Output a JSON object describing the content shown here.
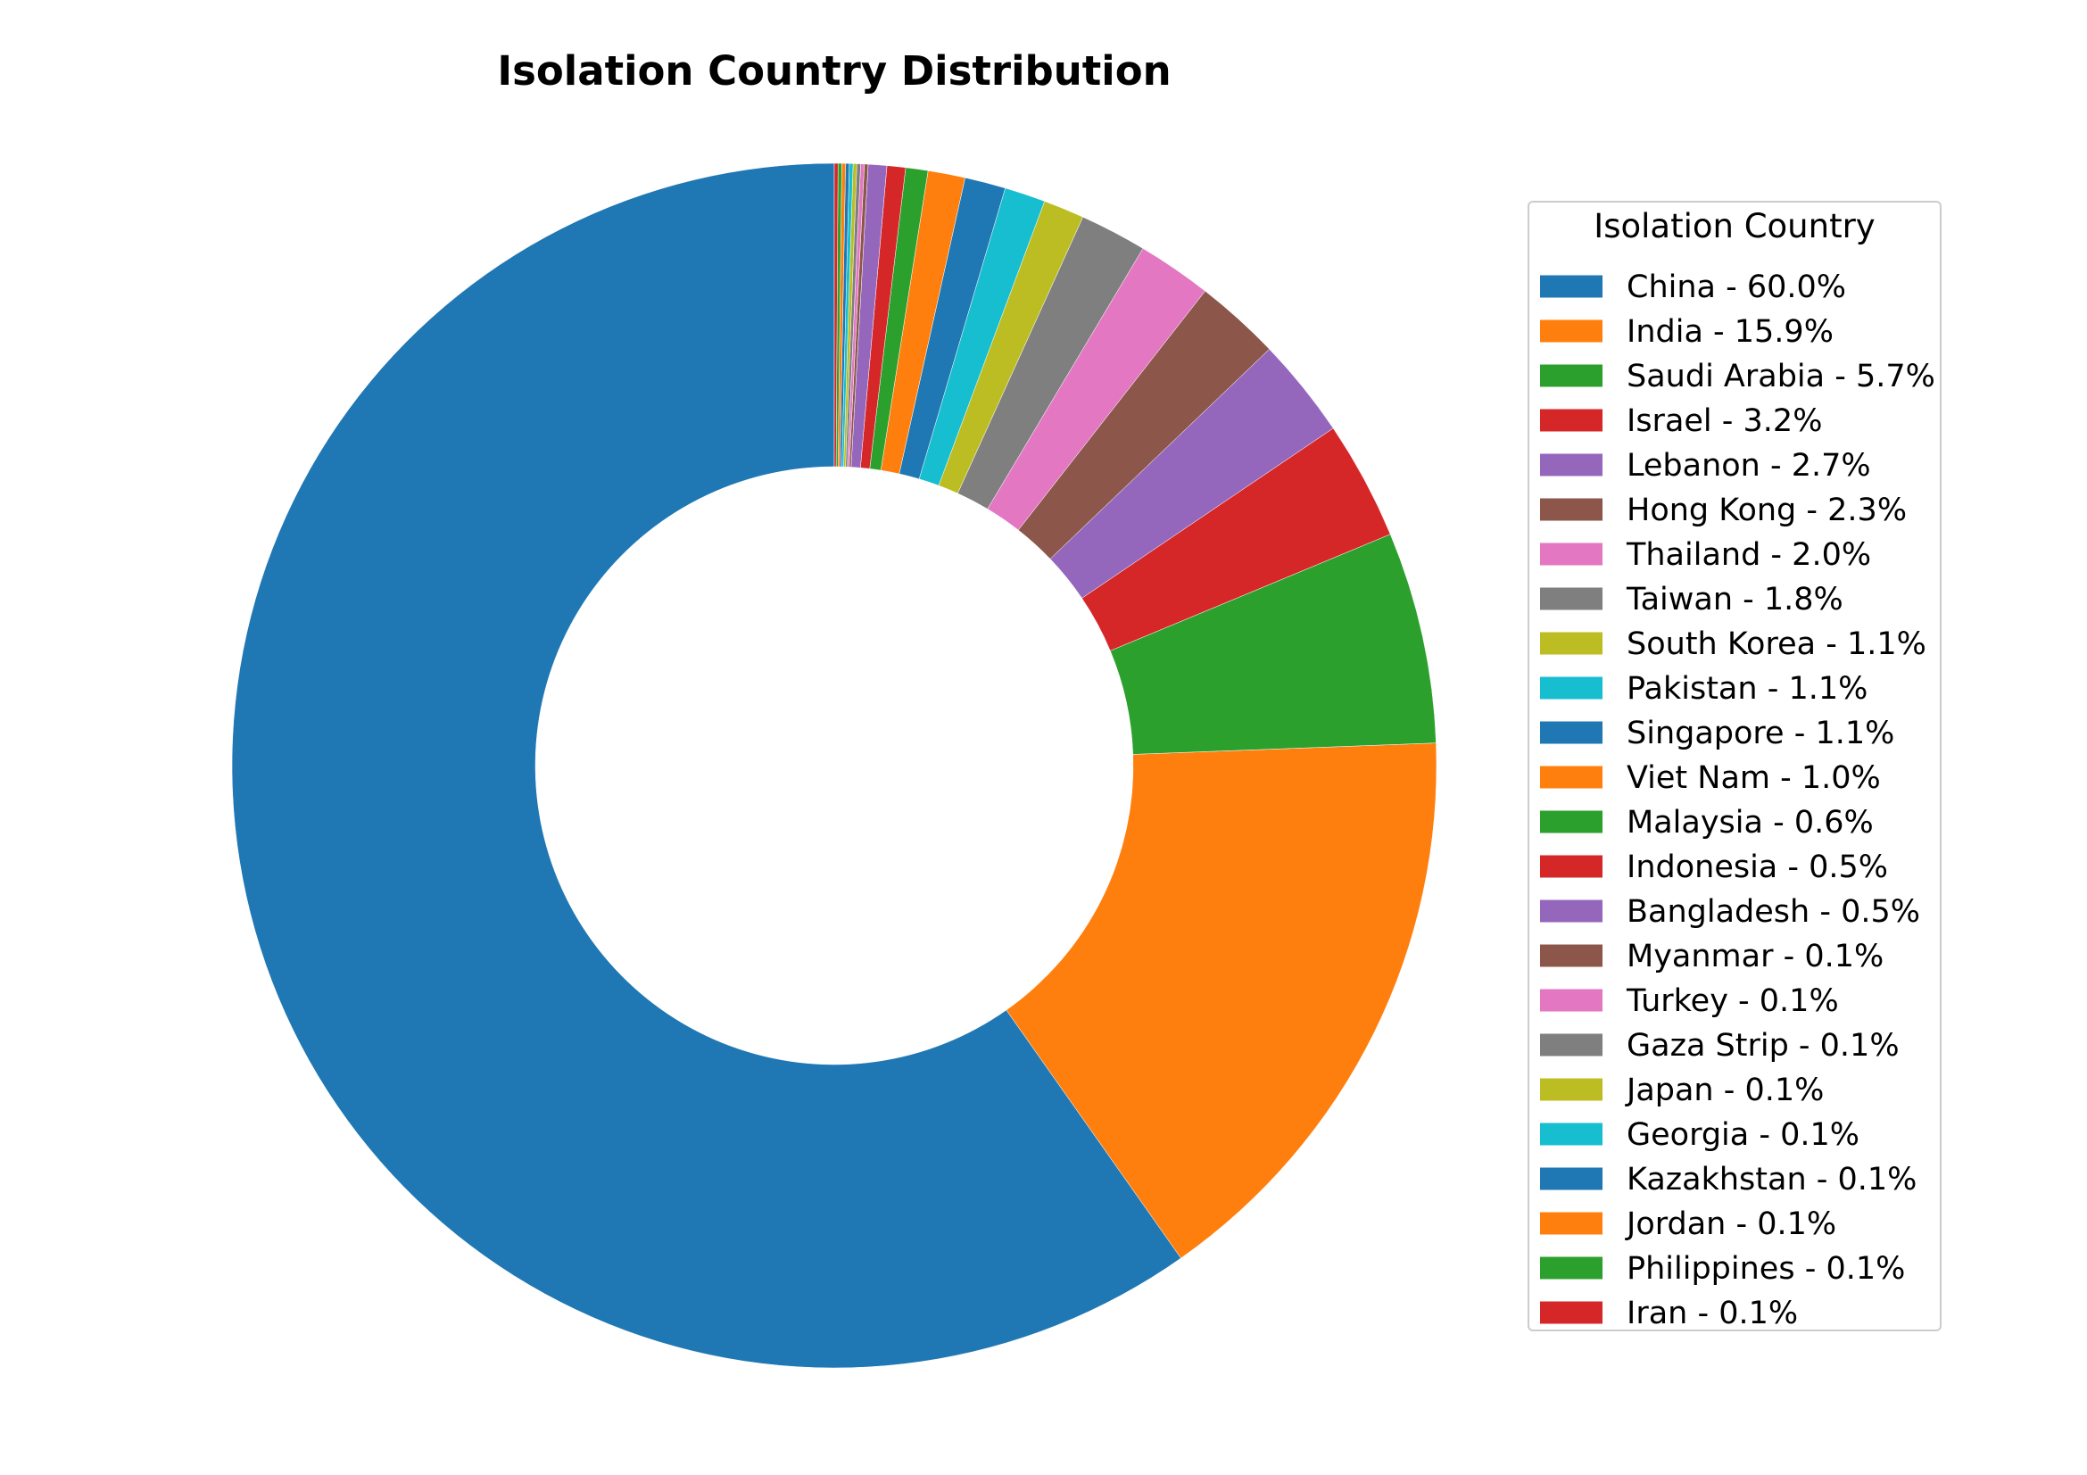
{
  "chart_data": {
    "type": "pie",
    "donut": true,
    "title": "Isolation Country Distribution",
    "legend": {
      "title": "Isolation Country",
      "placement": "right"
    },
    "start_angle_deg": 90,
    "direction": "counterclockwise",
    "slices": [
      {
        "label": "China - 60.0%",
        "category": "China",
        "value": 60.0,
        "color": "#1f77b4"
      },
      {
        "label": "India - 15.9%",
        "category": "India",
        "value": 15.9,
        "color": "#ff7f0e"
      },
      {
        "label": "Saudi Arabia - 5.7%",
        "category": "Saudi Arabia",
        "value": 5.7,
        "color": "#2ca02c"
      },
      {
        "label": "Israel - 3.2%",
        "category": "Israel",
        "value": 3.2,
        "color": "#d62728"
      },
      {
        "label": "Lebanon - 2.7%",
        "category": "Lebanon",
        "value": 2.7,
        "color": "#9467bd"
      },
      {
        "label": "Hong Kong - 2.3%",
        "category": "Hong Kong",
        "value": 2.3,
        "color": "#8c564b"
      },
      {
        "label": "Thailand - 2.0%",
        "category": "Thailand",
        "value": 2.0,
        "color": "#e377c2"
      },
      {
        "label": "Taiwan - 1.8%",
        "category": "Taiwan",
        "value": 1.8,
        "color": "#7f7f7f"
      },
      {
        "label": "South Korea - 1.1%",
        "category": "South Korea",
        "value": 1.1,
        "color": "#bcbd22"
      },
      {
        "label": "Pakistan - 1.1%",
        "category": "Pakistan",
        "value": 1.1,
        "color": "#17becf"
      },
      {
        "label": "Singapore - 1.1%",
        "category": "Singapore",
        "value": 1.1,
        "color": "#1f77b4"
      },
      {
        "label": "Viet Nam - 1.0%",
        "category": "Viet Nam",
        "value": 1.0,
        "color": "#ff7f0e"
      },
      {
        "label": "Malaysia - 0.6%",
        "category": "Malaysia",
        "value": 0.6,
        "color": "#2ca02c"
      },
      {
        "label": "Indonesia - 0.5%",
        "category": "Indonesia",
        "value": 0.5,
        "color": "#d62728"
      },
      {
        "label": "Bangladesh - 0.5%",
        "category": "Bangladesh",
        "value": 0.5,
        "color": "#9467bd"
      },
      {
        "label": "Myanmar - 0.1%",
        "category": "Myanmar",
        "value": 0.1,
        "color": "#8c564b"
      },
      {
        "label": "Turkey - 0.1%",
        "category": "Turkey",
        "value": 0.1,
        "color": "#e377c2"
      },
      {
        "label": "Gaza Strip - 0.1%",
        "category": "Gaza Strip",
        "value": 0.1,
        "color": "#7f7f7f"
      },
      {
        "label": "Japan - 0.1%",
        "category": "Japan",
        "value": 0.1,
        "color": "#bcbd22"
      },
      {
        "label": "Georgia - 0.1%",
        "category": "Georgia",
        "value": 0.1,
        "color": "#17becf"
      },
      {
        "label": "Kazakhstan - 0.1%",
        "category": "Kazakhstan",
        "value": 0.1,
        "color": "#1f77b4"
      },
      {
        "label": "Jordan - 0.1%",
        "category": "Jordan",
        "value": 0.1,
        "color": "#ff7f0e"
      },
      {
        "label": "Philippines - 0.1%",
        "category": "Philippines",
        "value": 0.1,
        "color": "#2ca02c"
      },
      {
        "label": "Iran - 0.1%",
        "category": "Iran",
        "value": 0.1,
        "color": "#d62728"
      }
    ]
  }
}
